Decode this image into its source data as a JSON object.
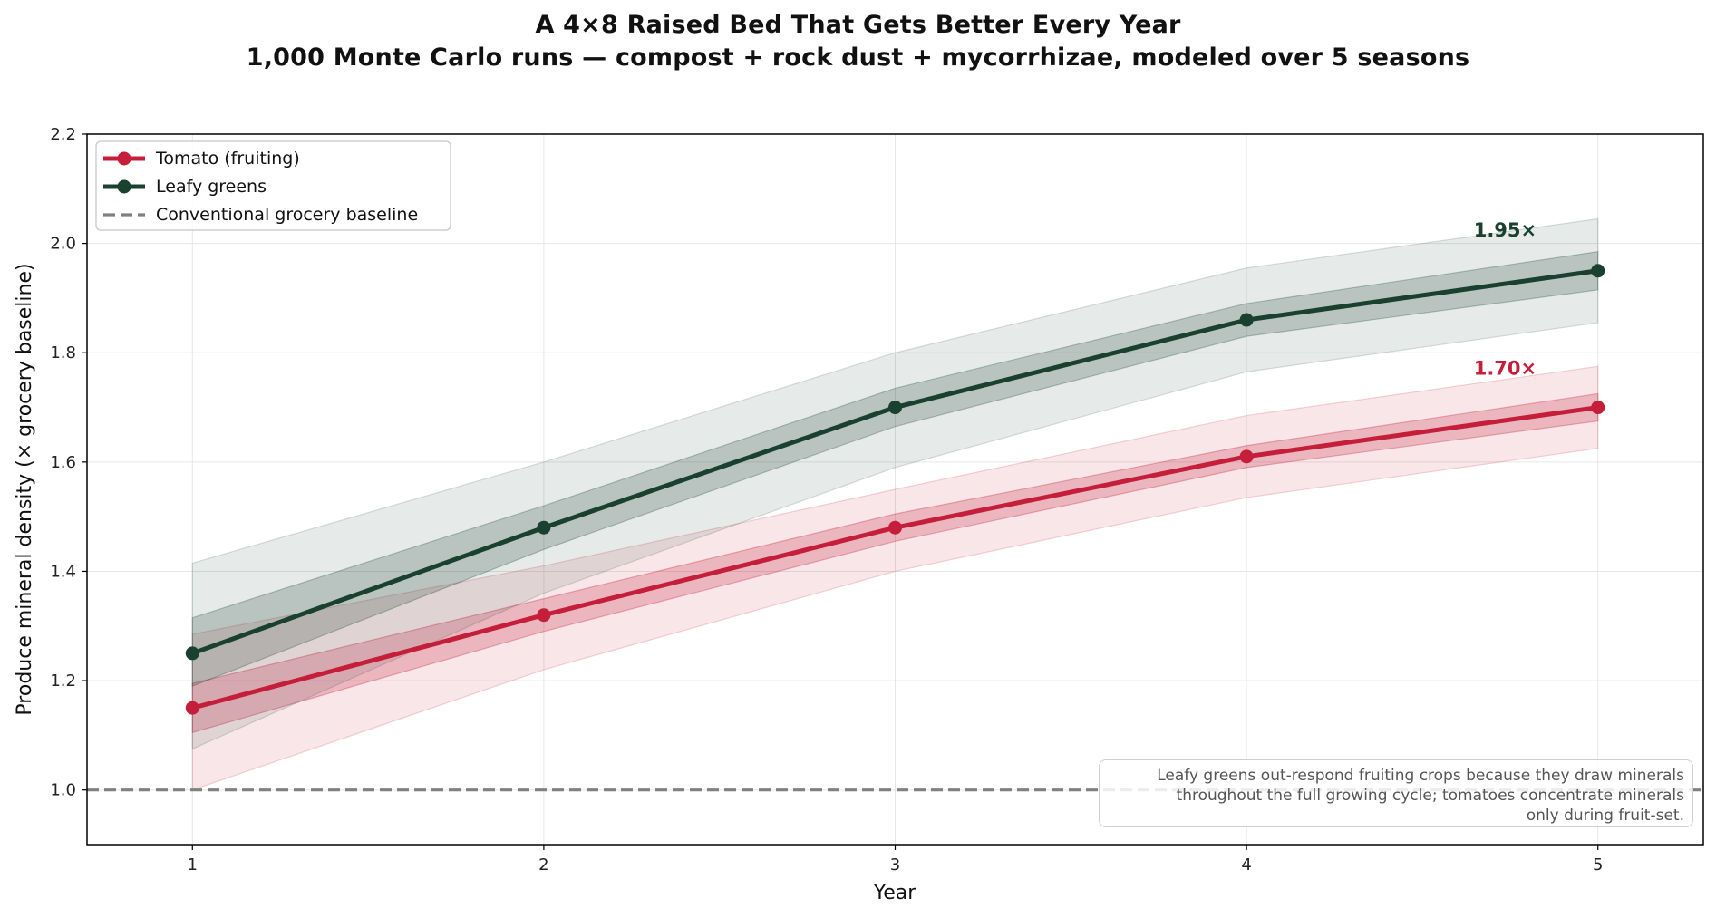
{
  "chart_data": {
    "type": "line",
    "title": "A 4×8 Raised Bed That Gets Better Every Year",
    "subtitle": "1,000 Monte Carlo runs — compost + rock dust + mycorrhizae, modeled over 5 seasons",
    "xlabel": "Year",
    "ylabel": "Produce mineral density (× grocery baseline)",
    "x": [
      1,
      2,
      3,
      4,
      5
    ],
    "xlim": [
      0.7,
      5.3
    ],
    "ylim": [
      0.9,
      2.2
    ],
    "x_ticks": [
      1,
      2,
      3,
      4,
      5
    ],
    "y_ticks": [
      1.0,
      1.2,
      1.4,
      1.6,
      1.8,
      2.0,
      2.2
    ],
    "grid": true,
    "legend_position": "top-left",
    "series": [
      {
        "name": "Tomato (fruiting)",
        "color": "#c41e3a",
        "values": [
          1.15,
          1.32,
          1.48,
          1.61,
          1.7
        ],
        "inner_band_low": [
          1.105,
          1.29,
          1.455,
          1.59,
          1.675
        ],
        "inner_band_high": [
          1.195,
          1.35,
          1.505,
          1.63,
          1.725
        ],
        "outer_band_low": [
          1.0,
          1.22,
          1.4,
          1.535,
          1.625
        ],
        "outer_band_high": [
          1.285,
          1.41,
          1.55,
          1.685,
          1.775
        ],
        "end_label": "1.70×"
      },
      {
        "name": "Leafy greens",
        "color": "#1a4030",
        "values": [
          1.25,
          1.48,
          1.7,
          1.86,
          1.95
        ],
        "inner_band_low": [
          1.19,
          1.44,
          1.665,
          1.83,
          1.915
        ],
        "inner_band_high": [
          1.315,
          1.52,
          1.735,
          1.89,
          1.985
        ],
        "outer_band_low": [
          1.075,
          1.36,
          1.59,
          1.765,
          1.855
        ],
        "outer_band_high": [
          1.415,
          1.6,
          1.8,
          1.955,
          2.045
        ],
        "end_label": "1.95×"
      }
    ],
    "baseline": {
      "name": "Conventional grocery baseline",
      "value": 1.0,
      "color": "#808080",
      "style": "dashed"
    },
    "annotation": {
      "lines": [
        "Leafy greens out-respond fruiting crops because they draw minerals",
        "throughout the full growing cycle; tomatoes concentrate minerals",
        "only during fruit-set."
      ],
      "position": "bottom-right"
    }
  }
}
